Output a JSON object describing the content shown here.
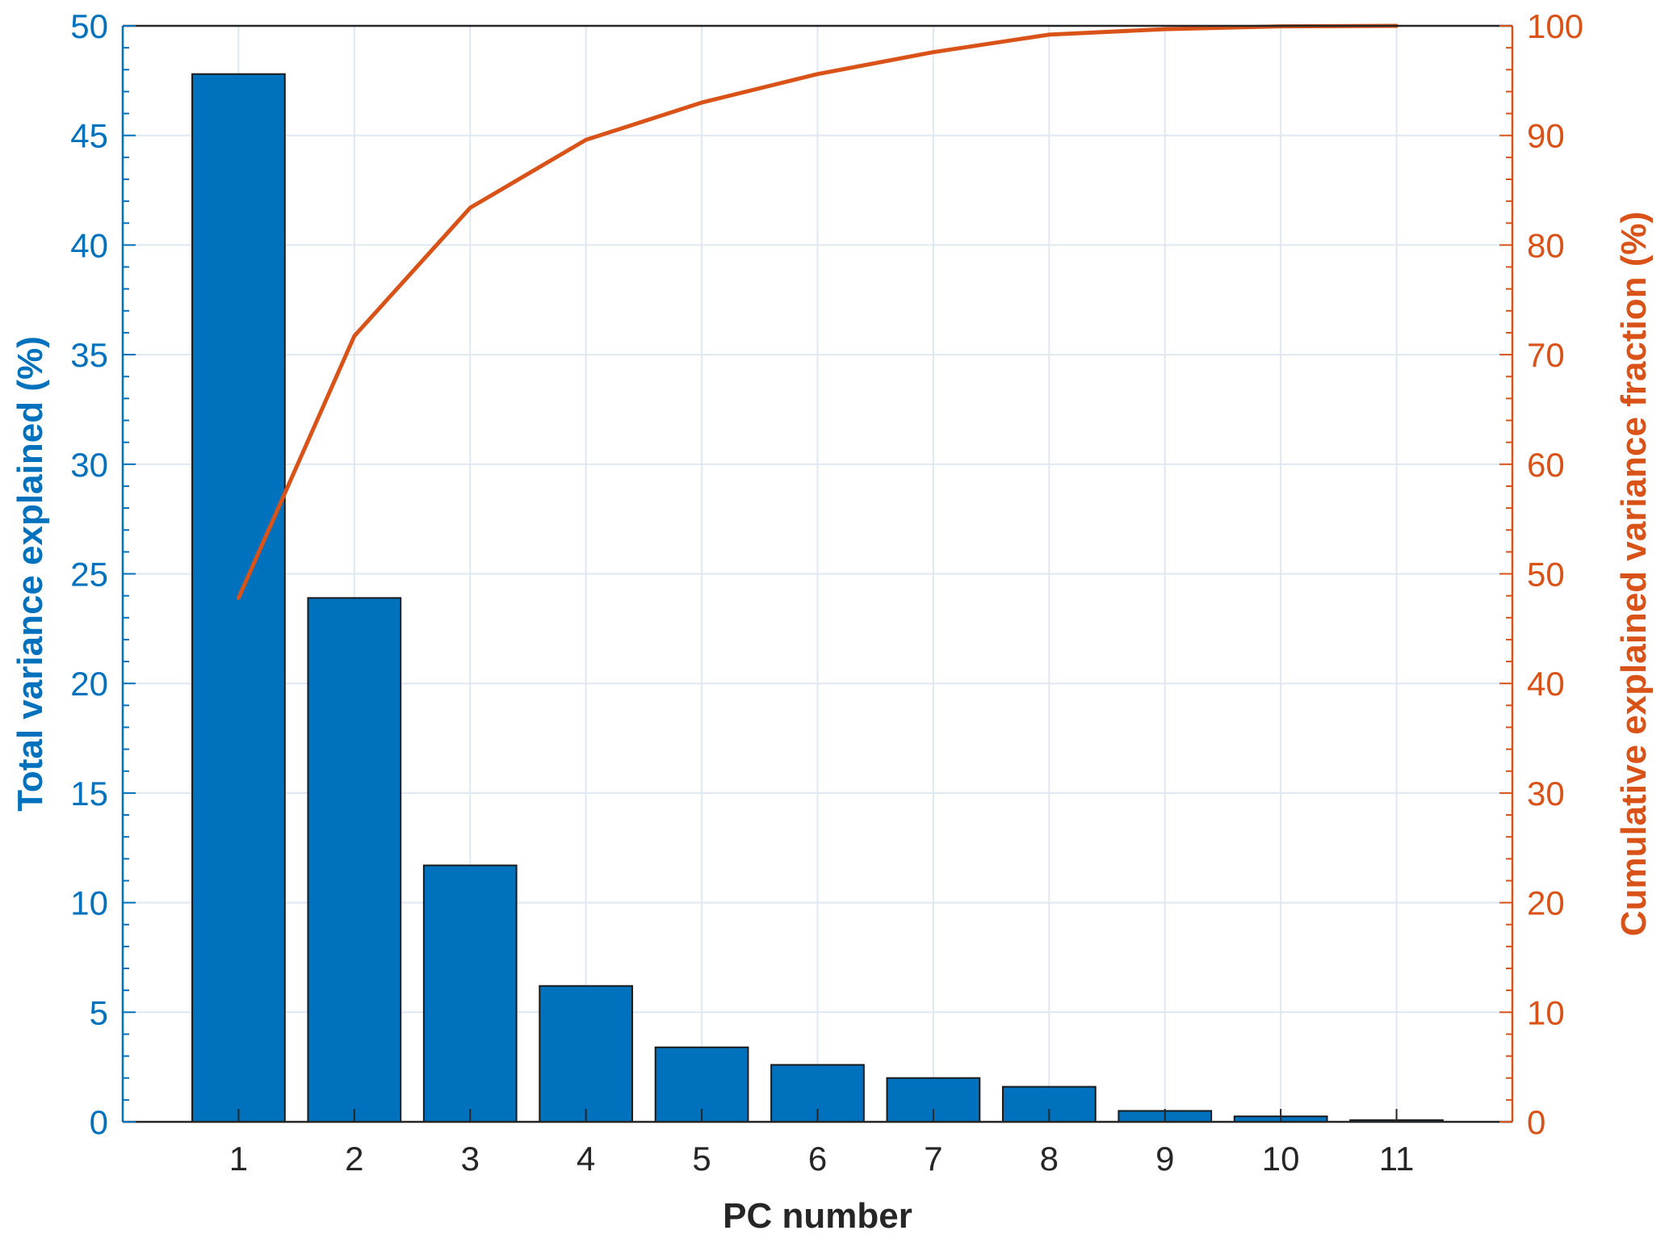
{
  "colors": {
    "bar": "#0072BD",
    "line": "#D95319",
    "grid": "#DFE8F1",
    "axis_text": "#262626"
  },
  "chart_data": {
    "type": "bar",
    "grid": true,
    "categories": [
      "1",
      "2",
      "3",
      "4",
      "5",
      "6",
      "7",
      "8",
      "9",
      "10",
      "11"
    ],
    "xlabel": "PC number",
    "xlim": [
      0,
      12
    ],
    "series": [
      {
        "type": "bar",
        "axis": "left",
        "values": [
          47.8,
          23.9,
          11.7,
          6.2,
          3.4,
          2.6,
          2.0,
          1.6,
          0.5,
          0.25,
          0.08
        ]
      },
      {
        "type": "line",
        "axis": "right",
        "values": [
          47.8,
          71.7,
          83.4,
          89.6,
          93.0,
          95.6,
          97.6,
          99.2,
          99.7,
          99.95,
          100.0
        ]
      }
    ],
    "ylabel": "Total variance explained  (%)",
    "ylim": [
      0,
      50
    ],
    "yticks": [
      "0",
      "5",
      "10",
      "15",
      "20",
      "25",
      "30",
      "35",
      "40",
      "45",
      "50"
    ],
    "y2label": "Cumulative explained variance fraction (%)",
    "y2lim": [
      0,
      100
    ],
    "y2ticks": [
      "0",
      "10",
      "20",
      "30",
      "40",
      "50",
      "60",
      "70",
      "80",
      "90",
      "100"
    ]
  }
}
